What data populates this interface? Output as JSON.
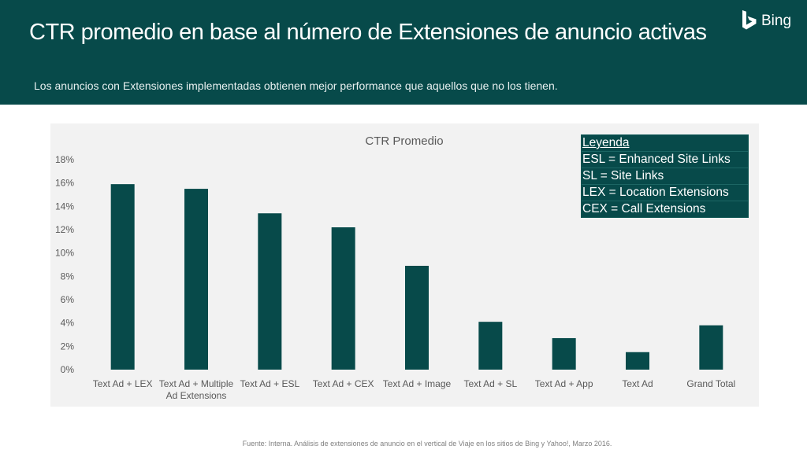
{
  "header": {
    "title": "CTR promedio en base al número de Extensiones de anuncio activas",
    "subtitle": "Los anuncios con Extensiones implementadas obtienen mejor performance que aquellos que no los tienen.",
    "brand": "Bing"
  },
  "legend": {
    "title": "Leyenda",
    "items": [
      "ESL = Enhanced Site Links",
      "SL = Site Links",
      "LEX = Location Extensions",
      "CEX = Call Extensions"
    ]
  },
  "footer": {
    "source": "Fuente: Interna. Análisis de extensiones de anuncio en el vertical de Viaje en los sitios de Bing y Yahoo!, Marzo 2016."
  },
  "colors": {
    "header_bg": "#074a4a",
    "bar": "#074a4a",
    "chart_bg": "#f2f2f2"
  },
  "chart_data": {
    "type": "bar",
    "title": "CTR Promedio",
    "categories": [
      "Text Ad + LEX",
      "Text Ad + Multiple Ad Extensions",
      "Text Ad + ESL",
      "Text Ad + CEX",
      "Text Ad + Image",
      "Text Ad + SL",
      "Text Ad + App",
      "Text Ad",
      "Grand Total"
    ],
    "values": [
      15.9,
      15.5,
      13.4,
      12.2,
      8.9,
      4.1,
      2.7,
      1.5,
      3.8
    ],
    "ylim": [
      0,
      18
    ],
    "yticks": [
      "0%",
      "2%",
      "4%",
      "6%",
      "8%",
      "10%",
      "12%",
      "14%",
      "16%",
      "18%"
    ],
    "xlabel": "",
    "ylabel": "",
    "grid": false
  }
}
